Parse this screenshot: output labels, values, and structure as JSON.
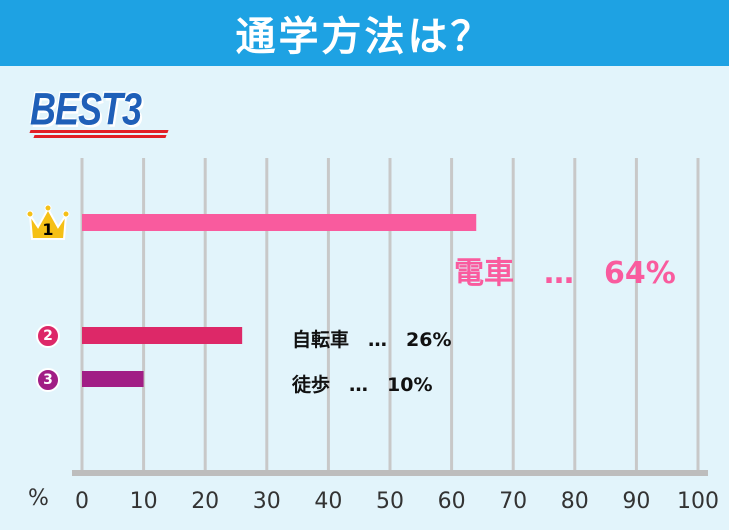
{
  "header": {
    "title": "通学方法は？"
  },
  "badge": {
    "text": "BEST3"
  },
  "chart_data": {
    "type": "bar",
    "orientation": "horizontal",
    "title": "",
    "categories": [
      "電車",
      "自転車",
      "徒歩"
    ],
    "values": [
      64,
      26,
      10
    ],
    "ranks": [
      "1",
      "2",
      "3"
    ],
    "data_labels": [
      "電車　…　64%",
      "自転車　…　26%",
      "徒歩　…　10%"
    ],
    "xlabel": "%",
    "xlim": [
      0,
      100
    ],
    "xticks": [
      0,
      10,
      20,
      30,
      40,
      50,
      60,
      70,
      80,
      90,
      100
    ],
    "grid": true,
    "colors": {
      "bars": [
        "#f95b9e",
        "#dd2868",
        "#a11e85"
      ],
      "badges": [
        "#f4c21d",
        "#dd2868",
        "#a11e85"
      ],
      "labels": [
        "#f95b9e",
        "#111111",
        "#111111"
      ],
      "grid": "#c8c8c8",
      "axis": "#bdbdbd"
    }
  }
}
